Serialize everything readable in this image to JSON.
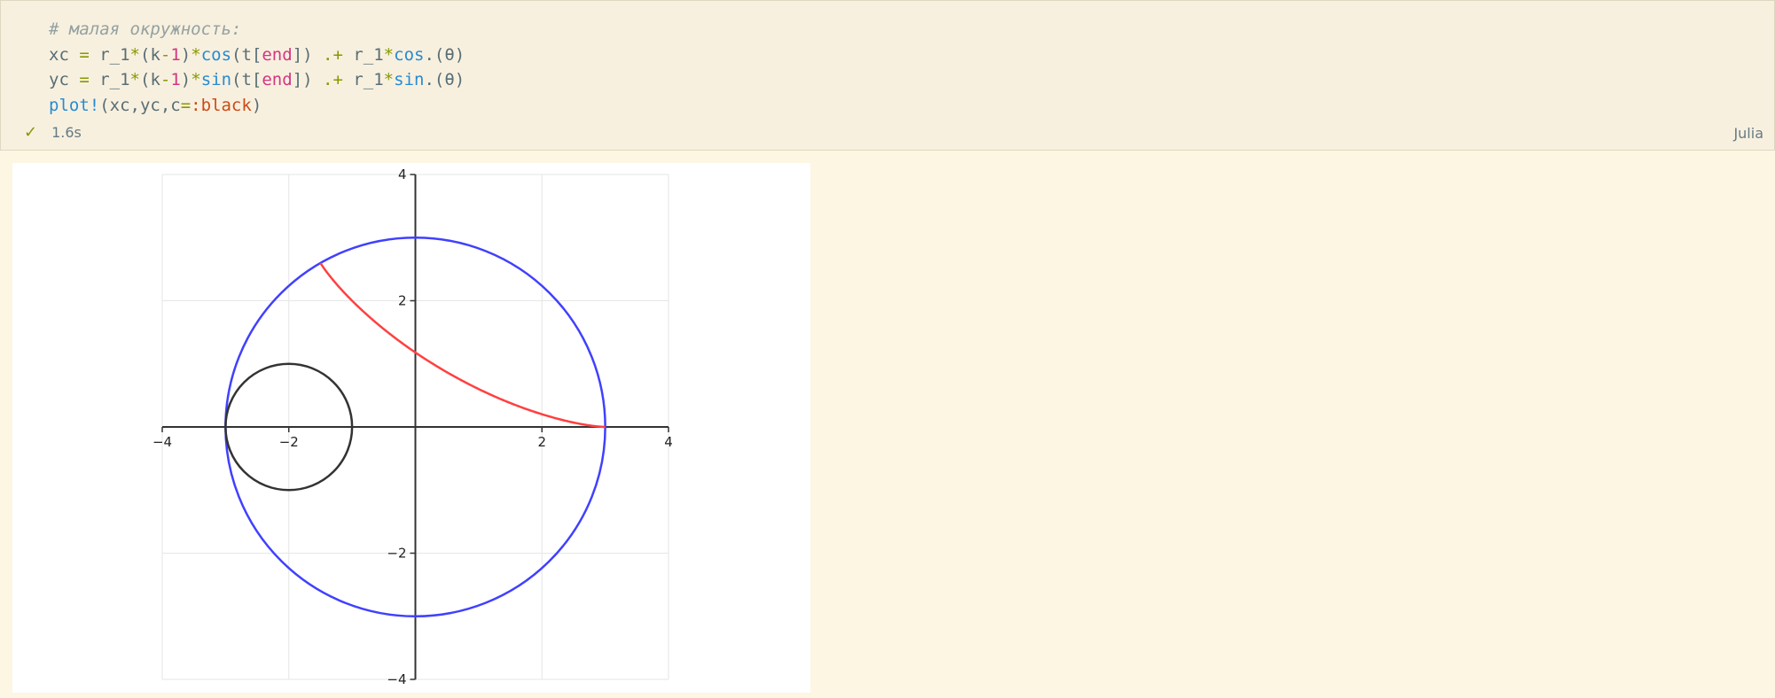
{
  "cell": {
    "code_lines": [
      [
        {
          "t": "# малая окружность:",
          "c": "cm"
        }
      ],
      [
        {
          "t": "xc ",
          "c": ""
        },
        {
          "t": "=",
          "c": "op"
        },
        {
          "t": " r_1",
          "c": ""
        },
        {
          "t": "*",
          "c": "op"
        },
        {
          "t": "(k",
          "c": ""
        },
        {
          "t": "-",
          "c": "op"
        },
        {
          "t": "1",
          "c": "num"
        },
        {
          "t": ")",
          "c": ""
        },
        {
          "t": "*",
          "c": "op"
        },
        {
          "t": "cos",
          "c": "fn"
        },
        {
          "t": "(t[",
          "c": ""
        },
        {
          "t": "end",
          "c": "kw"
        },
        {
          "t": "]) ",
          "c": ""
        },
        {
          "t": ".+",
          "c": "op"
        },
        {
          "t": " r_1",
          "c": ""
        },
        {
          "t": "*",
          "c": "op"
        },
        {
          "t": "cos",
          "c": "fn"
        },
        {
          "t": ".(θ)",
          "c": ""
        }
      ],
      [
        {
          "t": "yc ",
          "c": ""
        },
        {
          "t": "=",
          "c": "op"
        },
        {
          "t": " r_1",
          "c": ""
        },
        {
          "t": "*",
          "c": "op"
        },
        {
          "t": "(k",
          "c": ""
        },
        {
          "t": "-",
          "c": "op"
        },
        {
          "t": "1",
          "c": "num"
        },
        {
          "t": ")",
          "c": ""
        },
        {
          "t": "*",
          "c": "op"
        },
        {
          "t": "sin",
          "c": "fn"
        },
        {
          "t": "(t[",
          "c": ""
        },
        {
          "t": "end",
          "c": "kw"
        },
        {
          "t": "]) ",
          "c": ""
        },
        {
          "t": ".+",
          "c": "op"
        },
        {
          "t": " r_1",
          "c": ""
        },
        {
          "t": "*",
          "c": "op"
        },
        {
          "t": "sin",
          "c": "fn"
        },
        {
          "t": ".(θ)",
          "c": ""
        }
      ],
      [
        {
          "t": "plot!",
          "c": "fn"
        },
        {
          "t": "(xc,yc,c",
          "c": ""
        },
        {
          "t": "=",
          "c": "op"
        },
        {
          "t": ":black",
          "c": "sym"
        },
        {
          "t": ")",
          "c": ""
        }
      ]
    ],
    "status_icon": "check-icon",
    "exec_time": "1.6s",
    "language": "Julia",
    "colors": {
      "cell_bg": "#f8f0df",
      "page_bg": "#fdf6e3",
      "status_ok": "#859900"
    }
  },
  "chart_data": {
    "type": "line",
    "title": "",
    "xlabel": "",
    "ylabel": "",
    "xlim": [
      -4,
      4
    ],
    "ylim": [
      -4,
      4
    ],
    "x_ticks": [
      -4,
      -2,
      2,
      4
    ],
    "y_ticks": [
      4,
      2,
      -2,
      -4
    ],
    "x_tick_labels": [
      "−4",
      "−2",
      "2",
      "4"
    ],
    "y_tick_labels": [
      "4",
      "2",
      "−2",
      "−4"
    ],
    "grid": true,
    "legend": "none",
    "axes_through_origin": true,
    "series": [
      {
        "kind": "circle",
        "center": [
          0,
          0
        ],
        "radius": 3,
        "color": "#4040ff"
      },
      {
        "kind": "hypocycloid-arc",
        "R": 3,
        "r": 1,
        "t_start": 0,
        "t_end": 2.0944,
        "color": "#ff4040"
      },
      {
        "kind": "circle",
        "center": [
          -2,
          0
        ],
        "radius": 1,
        "color": "#333333"
      }
    ]
  }
}
